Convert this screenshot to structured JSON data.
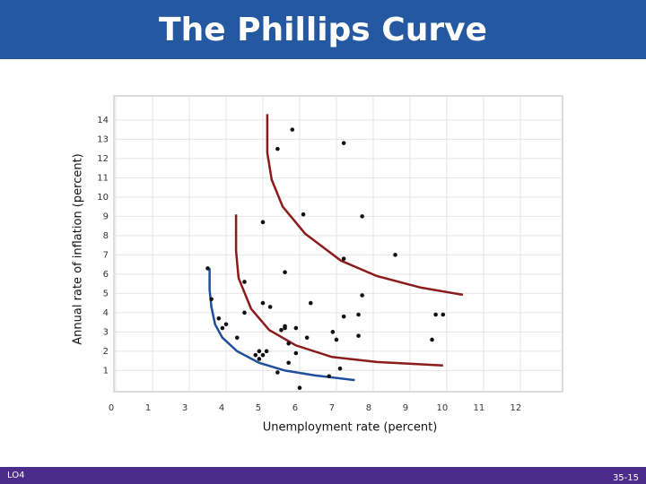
{
  "header": {
    "title": "The Phillips Curve"
  },
  "footer": {
    "left": "LO4",
    "right": "35-15"
  },
  "chart_data": {
    "type": "scatter",
    "x_label": "Unemployment rate (percent)",
    "y_label": "Annual rate of inflation (percent)",
    "x": [
      3.5,
      3.6,
      3.8,
      3.9,
      4.0,
      4.3,
      4.5,
      4.5,
      4.8,
      4.9,
      4.9,
      5.0,
      5.1,
      5.0,
      5.0,
      5.2,
      5.4,
      5.5,
      5.6,
      5.6,
      5.6,
      5.4,
      5.7,
      5.8,
      5.7,
      5.9,
      6.0,
      5.9,
      6.1,
      6.2,
      6.3,
      6.8,
      6.9,
      7.0,
      7.1,
      7.2,
      7.2,
      7.2,
      7.6,
      7.6,
      7.7,
      7.7,
      8.6,
      9.6,
      9.7,
      9.9
    ],
    "y": [
      6.3,
      4.7,
      3.7,
      3.2,
      3.4,
      2.7,
      4.0,
      5.6,
      1.8,
      2.0,
      1.6,
      1.8,
      2.0,
      8.7,
      4.5,
      4.3,
      12.5,
      3.1,
      3.2,
      6.1,
      3.3,
      0.9,
      2.4,
      13.5,
      1.4,
      1.9,
      0.1,
      3.2,
      9.1,
      2.7,
      4.5,
      0.7,
      3.0,
      2.6,
      1.1,
      6.8,
      3.8,
      12.8,
      3.9,
      2.8,
      9.0,
      4.9,
      7.0,
      2.6,
      3.9,
      3.9
    ],
    "color": "#111111",
    "lines": [
      {
        "color": "#1f4e9c",
        "x": [
          3.55,
          3.55,
          3.6,
          3.7,
          3.9,
          4.3,
          4.9,
          5.6,
          6.4,
          7.5
        ],
        "y": [
          6.3,
          5.2,
          4.3,
          3.4,
          2.7,
          2.0,
          1.4,
          1.0,
          0.75,
          0.5
        ]
      },
      {
        "color": "#8b1a1a",
        "x": [
          4.27,
          4.27,
          4.34,
          4.68,
          5.17,
          5.9,
          6.88,
          8.1,
          9.9
        ],
        "y": [
          9.1,
          7.2,
          5.8,
          4.2,
          3.1,
          2.3,
          1.7,
          1.44,
          1.26
        ]
      },
      {
        "color": "#8b1a1a",
        "x": [
          5.12,
          5.12,
          5.24,
          5.54,
          6.15,
          7.12,
          8.1,
          9.3,
          10.44
        ],
        "y": [
          14.3,
          12.3,
          10.9,
          9.5,
          8.1,
          6.7,
          5.9,
          5.3,
          4.93
        ]
      }
    ],
    "xlim": [
      0.95,
      13.15
    ],
    "ylim": [
      -0.1,
      15.25
    ],
    "xticks": [
      {
        "value": 1,
        "label": "0"
      },
      {
        "value": 2,
        "label": "1"
      },
      3,
      4,
      5,
      6,
      7,
      8,
      9,
      10,
      11,
      12
    ],
    "yticks": [
      1,
      2,
      3,
      4,
      5,
      6,
      7,
      8,
      9,
      10,
      11,
      12,
      13,
      14
    ],
    "grid": true
  }
}
